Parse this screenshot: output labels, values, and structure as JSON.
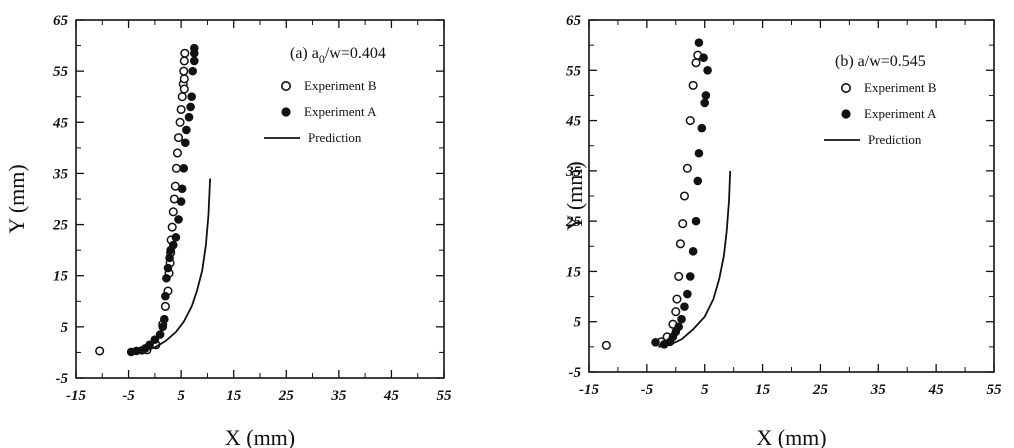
{
  "chart_data": [
    {
      "type": "scatter",
      "panel_label": "(a) a",
      "panel_label_sub": "0",
      "panel_label_rest": "/w=0.404",
      "xlabel": "X (mm)",
      "ylabel": "Y (mm)",
      "xlim": [
        -15,
        55
      ],
      "ylim": [
        -5,
        65
      ],
      "xticks": [
        "-15",
        "-5",
        "5",
        "15",
        "25",
        "35",
        "45",
        "55"
      ],
      "yticks": [
        "-5",
        "5",
        "15",
        "25",
        "35",
        "45",
        "55",
        "65"
      ],
      "legend": [
        {
          "label": "Experiment B",
          "marker": "open-circle"
        },
        {
          "label": "Experiment A",
          "marker": "filled-circle"
        },
        {
          "label": "Prediction",
          "marker": "line"
        }
      ],
      "series": [
        {
          "name": "Experiment B",
          "marker": "open",
          "x": [
            -10.5,
            -1.5,
            0.2,
            1.5,
            2.0,
            2.5,
            2.7,
            2.9,
            3.0,
            3.1,
            3.3,
            3.5,
            3.7,
            3.9,
            4.1,
            4.3,
            4.5,
            4.8,
            5.0,
            5.2,
            5.4,
            5.5,
            5.6,
            5.6,
            5.6,
            5.7
          ],
          "y": [
            0.3,
            0.5,
            1.5,
            5.5,
            9.0,
            12.0,
            15.5,
            17.5,
            19.5,
            22.0,
            24.5,
            27.5,
            30.0,
            32.5,
            36.0,
            39.0,
            42.0,
            45.0,
            47.5,
            50.0,
            52.5,
            55.0,
            57.0,
            53.5,
            51.5,
            58.5
          ]
        },
        {
          "name": "Experiment A",
          "marker": "filled",
          "x": [
            -4.5,
            -3.5,
            -2.5,
            -1.8,
            -1.0,
            0.0,
            1.0,
            1.5,
            1.8,
            2.0,
            2.2,
            2.5,
            2.8,
            3.0,
            3.5,
            4.0,
            4.5,
            5.0,
            5.2,
            5.5,
            5.8,
            6.0,
            6.5,
            6.8,
            7.0,
            7.2,
            7.5,
            7.5,
            7.5
          ],
          "y": [
            0.1,
            0.3,
            0.4,
            0.8,
            1.5,
            2.5,
            3.5,
            5.0,
            6.5,
            11.0,
            14.5,
            16.5,
            18.5,
            20.0,
            21.0,
            22.5,
            26.0,
            29.5,
            32.0,
            36.0,
            41.0,
            43.5,
            46.0,
            48.0,
            50.0,
            55.0,
            57.0,
            58.5,
            59.5
          ]
        },
        {
          "name": "Prediction",
          "marker": "line",
          "x": [
            -4.0,
            -2.0,
            0.0,
            2.0,
            4.0,
            5.5,
            7.0,
            8.0,
            9.0,
            9.7,
            10.2,
            10.5
          ],
          "y": [
            0.0,
            0.3,
            1.0,
            2.2,
            4.0,
            6.0,
            9.0,
            12.0,
            16.0,
            21.0,
            27.0,
            34.0
          ]
        }
      ]
    },
    {
      "type": "scatter",
      "panel_label": "(b) a/w=0.545",
      "xlabel": "X (mm)",
      "ylabel": "Y (mm)",
      "xlim": [
        -15,
        55
      ],
      "ylim": [
        -5,
        65
      ],
      "xticks": [
        "-15",
        "-5",
        "5",
        "15",
        "25",
        "35",
        "45",
        "55"
      ],
      "yticks": [
        "-5",
        "5",
        "15",
        "25",
        "35",
        "45",
        "55",
        "65"
      ],
      "legend": [
        {
          "label": "Experiment B",
          "marker": "open-circle"
        },
        {
          "label": "Experiment A",
          "marker": "filled-circle"
        },
        {
          "label": "Prediction",
          "marker": "line"
        }
      ],
      "series": [
        {
          "name": "Experiment B",
          "marker": "open",
          "x": [
            -12.0,
            -2.5,
            -1.5,
            -0.5,
            0.0,
            0.2,
            0.5,
            0.8,
            1.2,
            1.5,
            2.0,
            2.5,
            3.0,
            3.5,
            3.8
          ],
          "y": [
            0.3,
            1.0,
            2.0,
            4.5,
            7.0,
            9.5,
            14.0,
            20.5,
            24.5,
            30.0,
            35.5,
            45.0,
            52.0,
            56.5,
            58.0
          ]
        },
        {
          "name": "Experiment A",
          "marker": "filled",
          "x": [
            -3.5,
            -2.0,
            -1.0,
            -0.5,
            0.0,
            0.5,
            1.0,
            1.5,
            2.0,
            2.5,
            3.0,
            3.5,
            3.8,
            4.0,
            4.5,
            5.0,
            5.2,
            5.5,
            4.8,
            4.0
          ],
          "y": [
            0.9,
            0.5,
            1.0,
            2.0,
            3.0,
            4.0,
            5.5,
            8.0,
            10.5,
            14.0,
            19.0,
            25.0,
            33.0,
            38.5,
            43.5,
            48.5,
            50.0,
            55.0,
            57.5,
            60.5
          ]
        },
        {
          "name": "Prediction",
          "marker": "line",
          "x": [
            -3.0,
            -1.0,
            1.0,
            3.0,
            5.0,
            6.5,
            7.5,
            8.3,
            8.8,
            9.2,
            9.4
          ],
          "y": [
            0.0,
            0.4,
            1.5,
            3.5,
            6.0,
            9.5,
            13.5,
            18.0,
            23.0,
            29.0,
            35.0
          ]
        }
      ]
    }
  ]
}
